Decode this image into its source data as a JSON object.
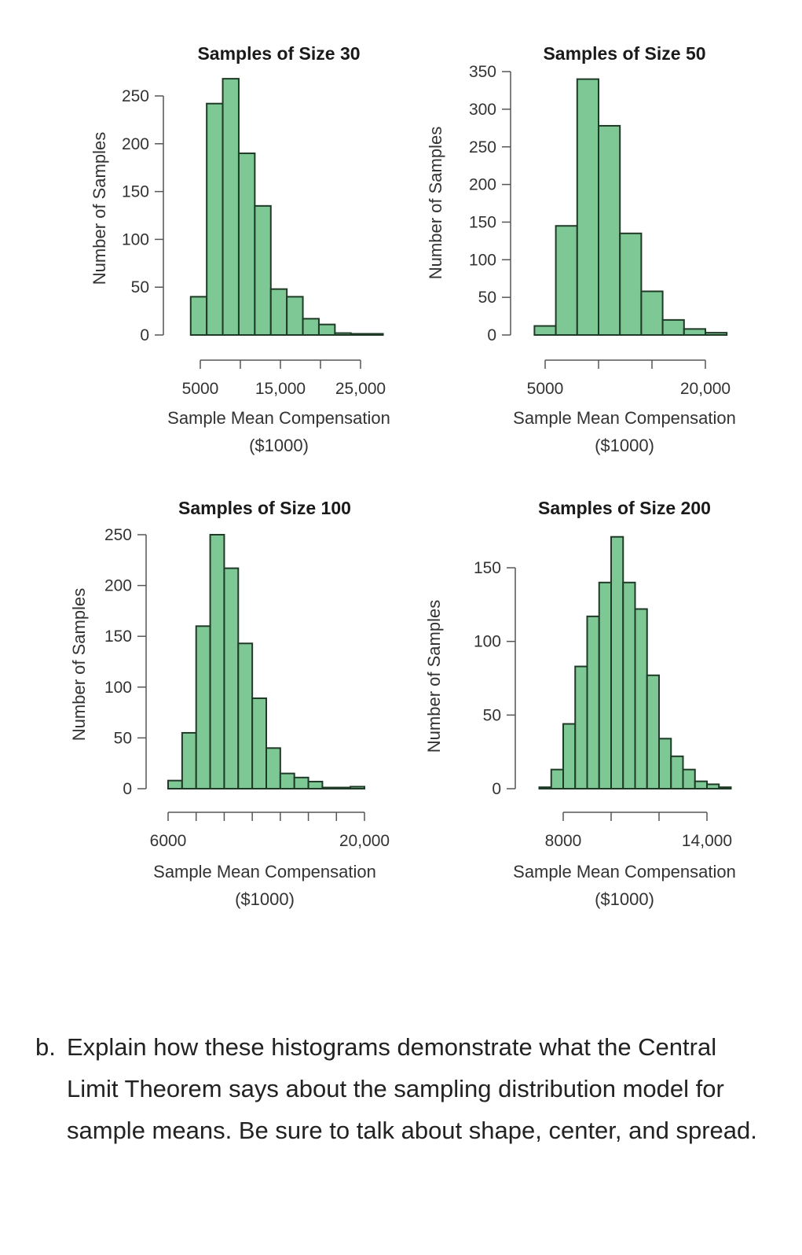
{
  "chart_data": [
    {
      "type": "bar",
      "title": "Samples of Size 30",
      "xlabel": [
        "Sample Mean Compensation",
        "($1000)"
      ],
      "ylabel": "Number of Samples",
      "bin_start": 3800,
      "bin_width": 2000,
      "values": [
        40,
        242,
        268,
        190,
        135,
        48,
        40,
        17,
        11,
        2,
        0,
        1
      ],
      "y_ticks": [
        0,
        50,
        100,
        150,
        200,
        250
      ],
      "x_ticks": [
        5000,
        10000,
        15000,
        20000,
        25000
      ],
      "x_tick_labels": [
        "5000",
        "",
        "15,000",
        "",
        "25,000"
      ],
      "color": "#7dc894"
    },
    {
      "type": "bar",
      "title": "Samples of Size 50",
      "xlabel": [
        "Sample Mean Compensation",
        "($1000)"
      ],
      "ylabel": "Number of Samples",
      "bin_start": 4000,
      "bin_width": 2000,
      "values": [
        12,
        145,
        340,
        278,
        135,
        58,
        20,
        8,
        3
      ],
      "y_ticks": [
        0,
        50,
        100,
        150,
        200,
        250,
        300,
        350
      ],
      "x_ticks": [
        5000,
        10000,
        15000,
        20000
      ],
      "x_tick_labels": [
        "5000",
        "",
        "",
        "20,000"
      ],
      "color": "#7dc894"
    },
    {
      "type": "bar",
      "title": "Samples of Size 100",
      "xlabel": [
        "Sample Mean Compensation",
        "($1000)"
      ],
      "ylabel": "Number of Samples",
      "bin_start": 6000,
      "bin_width": 1000,
      "values": [
        8,
        55,
        160,
        250,
        217,
        143,
        89,
        40,
        15,
        11,
        7,
        1,
        1,
        2
      ],
      "y_ticks": [
        0,
        50,
        100,
        150,
        200,
        250
      ],
      "x_ticks": [
        6000,
        8000,
        10000,
        12000,
        14000,
        16000,
        18000,
        20000
      ],
      "x_tick_labels": [
        "6000",
        "",
        "",
        "",
        "",
        "",
        "",
        "20,000"
      ],
      "color": "#7dc894"
    },
    {
      "type": "bar",
      "title": "Samples of Size 200",
      "xlabel": [
        "Sample Mean Compensation",
        "($1000)"
      ],
      "ylabel": "Number of Samples",
      "bin_start": 7000,
      "bin_width": 500,
      "values": [
        1,
        13,
        44,
        83,
        117,
        140,
        171,
        140,
        122,
        77,
        34,
        22,
        13,
        5,
        3,
        1
      ],
      "y_ticks": [
        0,
        50,
        100,
        150
      ],
      "x_ticks": [
        8000,
        10000,
        12000,
        14000
      ],
      "x_tick_labels": [
        "8000",
        "",
        "",
        "14,000"
      ],
      "color": "#7dc894"
    }
  ],
  "question": {
    "marker": "b.",
    "text": "Explain how these histograms demonstrate what the Central Limit Theorem says about the sampling distribution model for sample means. Be sure to talk about shape, center, and spread."
  }
}
